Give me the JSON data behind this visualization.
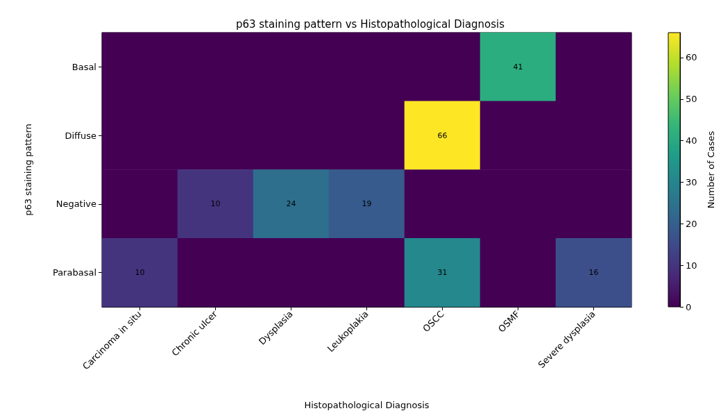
{
  "chart_data": {
    "type": "heatmap",
    "title": "p63 staining pattern vs Histopathological Diagnosis",
    "xlabel": "Histopathological Diagnosis",
    "ylabel": "p63 staining pattern",
    "clabel": "Number of Cases",
    "categories": [
      "Carcinoma in situ",
      "Chronic ulcer",
      "Dysplasia",
      "Leukoplakia",
      "OSCC",
      "OSMF",
      "Severe dysplasia"
    ],
    "y_categories": [
      "Basal",
      "Diffuse",
      "Negative",
      "Parabasal"
    ],
    "cells": [
      [
        0,
        0,
        0,
        0,
        0,
        41,
        0
      ],
      [
        0,
        0,
        0,
        0,
        66,
        0,
        0
      ],
      [
        0,
        10,
        24,
        19,
        0,
        0,
        0
      ],
      [
        10,
        0,
        0,
        0,
        31,
        0,
        16
      ]
    ],
    "cell_labels": [
      [
        null,
        null,
        null,
        null,
        null,
        "41",
        null
      ],
      [
        null,
        null,
        null,
        null,
        "66",
        null,
        null
      ],
      [
        null,
        "10",
        "24",
        "19",
        null,
        null,
        null
      ],
      [
        "10",
        null,
        null,
        null,
        "31",
        null,
        "16"
      ]
    ],
    "clim": [
      0,
      66
    ],
    "cticks": [
      0,
      10,
      20,
      30,
      40,
      50,
      60
    ]
  }
}
